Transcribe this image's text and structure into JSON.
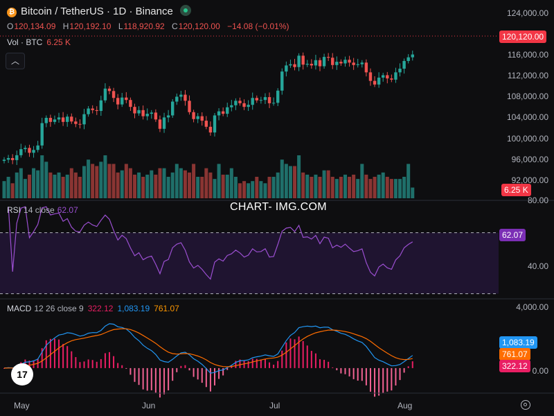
{
  "header": {
    "title": "Bitcoin / TetherUS · 1D · Binance",
    "ohlc": [
      {
        "k": "O",
        "v": "120,134.09"
      },
      {
        "k": "H",
        "v": "120,192.10"
      },
      {
        "k": "L",
        "v": "118,920.92"
      },
      {
        "k": "C",
        "v": "120,120.00"
      }
    ],
    "change": "−14.08 (−0.01%)",
    "vol_label": "Vol · BTC",
    "vol_value": "6.25 K",
    "collapse_icon": "chevron-up-icon"
  },
  "watermark": "CHART- IMG.COM",
  "rsi": {
    "name": "RSI",
    "params": "14 close",
    "value": "62.07"
  },
  "macd": {
    "name": "MACD",
    "params": "12 26 close 9",
    "hist": "322.12",
    "macd": "1,083.19",
    "signal": "761.07"
  },
  "price_axis": [
    "124,000.00",
    "120,000.00",
    "116,000.00",
    "112,000.00",
    "108,000.00",
    "104,000.00",
    "100,000.00",
    "96,000.00",
    "92,000.00"
  ],
  "rsi_axis": [
    "80.00",
    "40.00"
  ],
  "macd_axis": [
    "4,000.00",
    "0.00"
  ],
  "badges": {
    "last_price": "120,120.00",
    "volume": "6.25 K",
    "rsi": "62.07",
    "macd": "1,083.19",
    "signal": "761.07",
    "hist": "322.12"
  },
  "x_labels": [
    "May",
    "Jun",
    "Jul",
    "Aug"
  ],
  "colors": {
    "up": "#26a69a",
    "down": "#ef5350",
    "rsi": "#9b4fd1",
    "macd": "#2196f3",
    "signal": "#ff6d00",
    "hist": "#e91e63"
  },
  "chart_data": {
    "type": "candlestick",
    "title": "Bitcoin / TetherUS · 1D · Binance",
    "ylim": [
      90500,
      126000
    ],
    "closes": [
      94200,
      94600,
      94100,
      95300,
      96800,
      97100,
      95900,
      96600,
      97700,
      103200,
      104500,
      103500,
      104100,
      104600,
      103500,
      104800,
      103600,
      103000,
      102900,
      105400,
      106800,
      106400,
      106200,
      108800,
      111700,
      111100,
      109400,
      107800,
      109500,
      108900,
      107200,
      105600,
      106400,
      104900,
      105500,
      105800,
      104100,
      101800,
      104600,
      105100,
      108500,
      109700,
      110200,
      108700,
      105900,
      104200,
      104900,
      103800,
      102300,
      100900,
      105100,
      106100,
      105500,
      107100,
      107600,
      108700,
      108100,
      107200,
      107700,
      109400,
      108800,
      108900,
      109600,
      108100,
      108200,
      111200,
      115900,
      117400,
      117700,
      117000,
      119800,
      117600,
      117800,
      117400,
      118700,
      117200,
      119500,
      119300,
      117500,
      118300,
      117900,
      118800,
      118100,
      117500,
      117700,
      118100,
      115700,
      113600,
      112700,
      114400,
      115000,
      114200,
      113900,
      115700,
      116600,
      118500,
      119400,
      120100
    ],
    "volume_scale": [
      40,
      50,
      35,
      60,
      70,
      45,
      55,
      70,
      65,
      100,
      85,
      60,
      55,
      60,
      50,
      55,
      70,
      60,
      50,
      75,
      90,
      80,
      75,
      85,
      100,
      80,
      80,
      60,
      65,
      80,
      70,
      55,
      60,
      50,
      55,
      65,
      55,
      70,
      70,
      50,
      60,
      80,
      70,
      65,
      60,
      80,
      50,
      50,
      70,
      60,
      45,
      80,
      55,
      55,
      70,
      50,
      35,
      40,
      35,
      40,
      50,
      40,
      35,
      50,
      50,
      60,
      90,
      80,
      75,
      75,
      100,
      60,
      55,
      50,
      55,
      50,
      65,
      65,
      50,
      45,
      50,
      55,
      50,
      55,
      45,
      80,
      55,
      45,
      50,
      55,
      60,
      50,
      45,
      45,
      45,
      50,
      80,
      25
    ],
    "rsi_ylim": [
      28,
      88
    ],
    "rsi_levels": [
      70,
      30
    ],
    "macd_ylim": [
      -1800,
      4800
    ],
    "x": [
      "May",
      "Jun",
      "Jul",
      "Aug"
    ]
  }
}
